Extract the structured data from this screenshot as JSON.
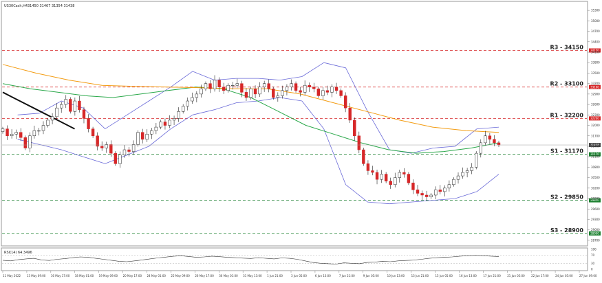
{
  "header": {
    "symbol_label": "US30Cash,H4",
    "ohlc_label": "31450 31467 31354 31438"
  },
  "indicator": {
    "label": "RSI(14) 64.3496",
    "levels": [
      70,
      30
    ]
  },
  "colors": {
    "support": "#1a7f2e",
    "resistance": "#d62728",
    "ma_fast": "#111111",
    "ma_mid": "#2aa84a",
    "ma_slow": "#f39c12",
    "bollinger": "#6a6ad8",
    "bull": "#222222",
    "bear": "#d62728"
  },
  "chart_data": [
    {
      "type": "line",
      "chart_subtype": "candlestick",
      "title": "US30Cash,H4",
      "ylim": [
        28600,
        35500
      ],
      "y_axis_position": "right",
      "grid": false,
      "current_price": 31438,
      "horizontal_levels": [
        {
          "name": "R3",
          "value": 34150,
          "label": "R3 - 34150"
        },
        {
          "name": "R2",
          "value": 33100,
          "label": "R2 - 33100"
        },
        {
          "name": "R1",
          "value": 32200,
          "label": "R1 - 32200"
        },
        {
          "name": "S1",
          "value": 31170,
          "label": "S1 - 31170"
        },
        {
          "name": "S2",
          "value": 29850,
          "label": "S2 - 29850"
        },
        {
          "name": "S3",
          "value": 28900,
          "label": "S3 - 28900"
        }
      ],
      "x_tick_labels": [
        "11 May 2022",
        "13 May 09:00",
        "16 May 17:00",
        "18 May 01:00",
        "19 May 09:00",
        "20 May 17:00",
        "24 May 01:00",
        "25 May 09:00",
        "26 May 17:00",
        "30 May 01:00",
        "31 May 13:00",
        "1 Jun 21:00",
        "3 Jun 05:00",
        "6 Jun 13:00",
        "7 Jun 21:00",
        "9 Jun 05:00",
        "10 Jun 13:00",
        "13 Jun 21:00",
        "15 Jun 05:00",
        "16 Jun 13:00",
        "17 Jun 21:00",
        "21 Jun 05:00",
        "22 Jun 17:00",
        "24 Jun 05:00",
        "27 Jun 09:00"
      ],
      "y_tick_labels": [
        28700,
        29000,
        29300,
        29600,
        29900,
        30200,
        30500,
        30800,
        31100,
        31400,
        31700,
        32000,
        32300,
        32600,
        32900,
        33200,
        33500,
        33800,
        34100,
        34400,
        34700,
        35000,
        35300
      ],
      "candles_close": [
        31900,
        31700,
        31750,
        31800,
        31650,
        31350,
        31700,
        31850,
        31850,
        32000,
        32150,
        32250,
        32500,
        32600,
        32750,
        32400,
        32700,
        32450,
        32200,
        31900,
        31700,
        31400,
        31350,
        31450,
        31200,
        30900,
        31150,
        31300,
        31250,
        31450,
        31800,
        31600,
        31750,
        31850,
        31950,
        32100,
        32000,
        32150,
        32200,
        32400,
        32550,
        32700,
        32800,
        32900,
        33050,
        33200,
        33050,
        33300,
        33100,
        33000,
        33150,
        33150,
        33200,
        32950,
        32800,
        33050,
        32900,
        33100,
        33200,
        33050,
        32800,
        32850,
        33000,
        33100,
        33200,
        33000,
        32950,
        33150,
        33100,
        33050,
        32850,
        33000,
        32950,
        33100,
        33000,
        32850,
        32500,
        32150,
        31700,
        31300,
        30900,
        30700,
        30650,
        30450,
        30600,
        30400,
        30300,
        30500,
        30650,
        30600,
        30350,
        30150,
        30050,
        30000,
        29950,
        30000,
        30150,
        30100,
        30200,
        30300,
        30450,
        30550,
        30650,
        30700,
        30800,
        31200,
        31500,
        31700,
        31600,
        31500,
        31438
      ],
      "series": [
        {
          "name": "MA fast",
          "values": [
            32950,
            32800,
            32650,
            32500,
            32350,
            32200,
            32050,
            31900
          ]
        },
        {
          "name": "MA mid",
          "values": [
            33200,
            33050,
            32950,
            32850,
            32800,
            32900,
            33000,
            33100,
            33050,
            32800,
            32400,
            32000,
            31750,
            31500,
            31300,
            31200,
            31250,
            31350,
            31500
          ]
        },
        {
          "name": "MA slow",
          "values": [
            33750,
            33500,
            33300,
            33150,
            33120,
            33100,
            33080,
            33050,
            33050,
            32900,
            32650,
            32400,
            32150,
            31950,
            31850,
            31800
          ]
        },
        {
          "name": "Bollinger upper",
          "values": [
            32300,
            32350,
            32700,
            32500,
            31900,
            32300,
            32700,
            33100,
            33550,
            33300,
            33350,
            33350,
            33300,
            33400,
            33800,
            33650,
            32400,
            31300,
            31200,
            31350,
            31400,
            31900,
            31950
          ]
        },
        {
          "name": "Bollinger lower",
          "values": [
            31600,
            31450,
            31300,
            31100,
            30900,
            31150,
            31400,
            31900,
            32300,
            32450,
            32650,
            32700,
            32800,
            32700,
            31900,
            30300,
            29800,
            29750,
            29800,
            29850,
            29900,
            30100,
            30600
          ]
        }
      ]
    },
    {
      "type": "line",
      "title": "RSI(14) 64.3496",
      "ylim": [
        0,
        100
      ],
      "y_tick_labels": [
        100,
        70,
        30,
        0
      ],
      "series": [
        {
          "name": "RSI(14)",
          "values": [
            45,
            42,
            48,
            52,
            55,
            47,
            44,
            50,
            53,
            58,
            62,
            60,
            55,
            50,
            45,
            40,
            38,
            42,
            47,
            52,
            57,
            61,
            65,
            68,
            64,
            60,
            62,
            66,
            63,
            60,
            58,
            56,
            54,
            58,
            55,
            52,
            57,
            55,
            50,
            42,
            34,
            30,
            28,
            26,
            32,
            30,
            28,
            34,
            36,
            40,
            38,
            42,
            44,
            46,
            50,
            55,
            58,
            60,
            62,
            66,
            68,
            70,
            68,
            66,
            64
          ]
        }
      ]
    }
  ]
}
